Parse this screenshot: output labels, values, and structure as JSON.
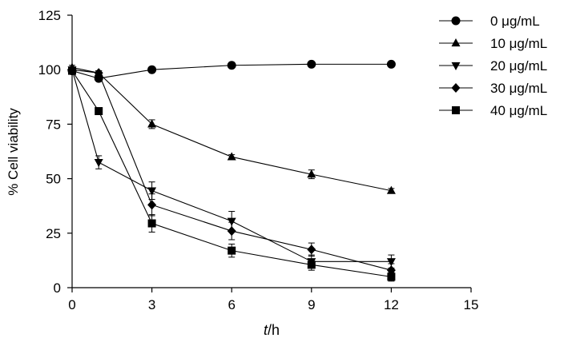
{
  "chart_data": {
    "type": "line",
    "xlabel": {
      "italic": "t",
      "rest": "/h"
    },
    "ylabel": "% Cell viability",
    "xlim": [
      0,
      15
    ],
    "ylim": [
      0,
      125
    ],
    "xticks": [
      0,
      3,
      6,
      9,
      12,
      15
    ],
    "yticks": [
      0,
      25,
      50,
      75,
      100,
      125
    ],
    "grid": false,
    "legend_position": "top-right",
    "series": [
      {
        "name": "0 μg/mL",
        "marker": "circle",
        "color": "#000000",
        "x": [
          0,
          1,
          3,
          6,
          9,
          12
        ],
        "y": [
          99.5,
          96,
          100,
          102,
          102.5,
          102.5
        ],
        "err": [
          1,
          1,
          1,
          0.8,
          0.8,
          0.8
        ]
      },
      {
        "name": "10 μg/mL",
        "marker": "triangle-up",
        "color": "#000000",
        "x": [
          0,
          1,
          3,
          6,
          9,
          12
        ],
        "y": [
          101,
          98.5,
          75,
          60,
          52,
          44.5
        ],
        "err": [
          1,
          1,
          2,
          1,
          2,
          1
        ]
      },
      {
        "name": "20 μg/mL",
        "marker": "triangle-down",
        "color": "#000000",
        "x": [
          0,
          1,
          3,
          6,
          9,
          12
        ],
        "y": [
          100,
          57.5,
          44.5,
          30.5,
          12,
          12
        ],
        "err": [
          1,
          3,
          4,
          4.5,
          3,
          3
        ]
      },
      {
        "name": "30 μg/mL",
        "marker": "diamond",
        "color": "#000000",
        "x": [
          0,
          1,
          3,
          6,
          9,
          12
        ],
        "y": [
          100,
          98.5,
          38,
          26,
          17.5,
          8
        ],
        "err": [
          1,
          1,
          5,
          4,
          3,
          3
        ]
      },
      {
        "name": "40 μg/mL",
        "marker": "square",
        "color": "#000000",
        "x": [
          0,
          1,
          3,
          6,
          9,
          12
        ],
        "y": [
          99.5,
          81,
          29.5,
          17,
          10.5,
          5
        ],
        "err": [
          1,
          1,
          4,
          3,
          2.5,
          2
        ]
      }
    ]
  }
}
